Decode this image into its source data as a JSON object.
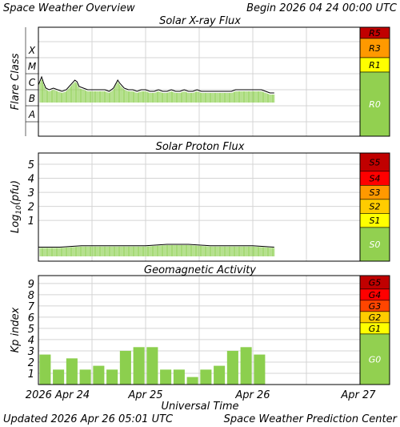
{
  "header": {
    "title": "Space Weather Overview",
    "begin": "Begin 2026 04 24 00:00 UTC"
  },
  "footer": {
    "updated": "Updated 2026 Apr 26 05:01 UTC",
    "credit": "Space Weather Prediction Center"
  },
  "colors": {
    "data_green": "#8ccf4e",
    "data_green_light": "#d6efc0",
    "grid": "#d4d4d4",
    "flux_trace": "#000000",
    "flare_highlight": "#f6c400",
    "scale_g0_s0_r0": "#92d050",
    "scale_yellow": "#ffff00",
    "scale_light_orange": "#ffcc00",
    "scale_orange": "#ff9900",
    "scale_red_orange": "#ff4500",
    "scale_red": "#ff0000",
    "scale_dark_red": "#c00000"
  },
  "chart_data": [
    {
      "type": "line",
      "title": "Solar X-ray Flux",
      "ylabel": "Flare Class",
      "y_categories": [
        "A",
        "B",
        "C",
        "M",
        "X"
      ],
      "x_ticks": [
        "2026 Apr 24",
        "Apr 25",
        "Apr 26",
        "Apr 27"
      ],
      "x_range_days": [
        0,
        3
      ],
      "data_end_day": 2.2,
      "series": [
        {
          "x_days": [
            0.0,
            0.03,
            0.05,
            0.07,
            0.1,
            0.14,
            0.18,
            0.22,
            0.26,
            0.3,
            0.34,
            0.36,
            0.38,
            0.42,
            0.46,
            0.5,
            0.54,
            0.58,
            0.62,
            0.66,
            0.7,
            0.74,
            0.76,
            0.8,
            0.84,
            0.88,
            0.92,
            0.96,
            1.0,
            1.04,
            1.08,
            1.12,
            1.16,
            1.2,
            1.24,
            1.28,
            1.32,
            1.36,
            1.4,
            1.44,
            1.48,
            1.52,
            1.56,
            1.6,
            1.64,
            1.68,
            1.72,
            1.76,
            1.8,
            1.84,
            1.88,
            1.92,
            1.96,
            2.0,
            2.04,
            2.08,
            2.12,
            2.16,
            2.2
          ],
          "y_class_level": [
            3.3,
            3.8,
            3.4,
            3.1,
            3.0,
            3.1,
            3.0,
            2.9,
            3.0,
            3.3,
            3.6,
            3.5,
            3.2,
            3.1,
            3.0,
            3.0,
            3.0,
            3.0,
            3.0,
            2.9,
            3.1,
            3.6,
            3.4,
            3.1,
            3.0,
            3.0,
            2.9,
            3.0,
            3.0,
            2.9,
            2.9,
            3.0,
            2.9,
            2.9,
            3.0,
            2.9,
            2.9,
            3.0,
            2.9,
            2.9,
            3.0,
            2.9,
            2.9,
            2.9,
            2.9,
            2.9,
            2.9,
            2.9,
            2.9,
            3.0,
            3.0,
            3.0,
            3.0,
            3.0,
            3.0,
            3.0,
            2.9,
            2.8,
            2.8
          ]
        }
      ],
      "scale_levels": [
        "R5",
        "R3",
        "R1",
        "R0"
      ]
    },
    {
      "type": "line",
      "title": "Solar Proton Flux",
      "ylabel": "Log10(pfu)",
      "ylim": [
        -1.9,
        5.8
      ],
      "y_ticks": [
        1,
        2,
        3,
        4,
        5
      ],
      "x_range_days": [
        0,
        3
      ],
      "data_end_day": 2.2,
      "series": [
        {
          "x_days": [
            0.0,
            0.2,
            0.4,
            0.6,
            0.8,
            1.0,
            1.2,
            1.4,
            1.6,
            1.8,
            2.0,
            2.2
          ],
          "values": [
            -0.9,
            -0.9,
            -0.8,
            -0.8,
            -0.8,
            -0.8,
            -0.7,
            -0.7,
            -0.8,
            -0.8,
            -0.8,
            -0.9
          ]
        }
      ],
      "scale_levels": [
        "S5",
        "S4",
        "S3",
        "S2",
        "S1",
        "S0"
      ]
    },
    {
      "type": "bar",
      "title": "Geomagnetic Activity",
      "ylabel": "Kp index",
      "xlabel": "Universal Time",
      "ylim": [
        0,
        9.7
      ],
      "y_ticks": [
        1,
        2,
        3,
        4,
        5,
        6,
        7,
        8,
        9
      ],
      "x_ticks": [
        "2026 Apr 24",
        "Apr 25",
        "Apr 26",
        "Apr 27"
      ],
      "bar_interval_hours": 3,
      "values": [
        2.67,
        1.33,
        2.33,
        1.33,
        1.67,
        1.33,
        3.0,
        3.33,
        3.33,
        1.33,
        1.33,
        0.67,
        1.33,
        1.67,
        3.0,
        3.33,
        2.67
      ],
      "scale_levels": [
        "G5",
        "G4",
        "G3",
        "G2",
        "G1",
        "G0"
      ]
    }
  ]
}
